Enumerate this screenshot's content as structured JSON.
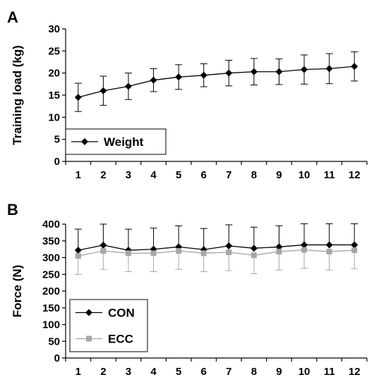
{
  "chart_data": [
    {
      "panel": "A",
      "type": "line",
      "xlabel": "",
      "ylabel": "Training load (kg)",
      "categories": [
        1,
        2,
        3,
        4,
        5,
        6,
        7,
        8,
        9,
        10,
        11,
        12
      ],
      "ylim": [
        0,
        30
      ],
      "yticks": [
        0,
        5,
        10,
        15,
        20,
        25,
        30
      ],
      "legend_position": "bottom-left",
      "series": [
        {
          "name": "Weight",
          "marker": "diamond",
          "color": "#000000",
          "values": [
            14.5,
            16.0,
            17.0,
            18.4,
            19.1,
            19.5,
            20.0,
            20.3,
            20.3,
            20.8,
            21.0,
            21.5
          ],
          "error": [
            3.2,
            3.3,
            3.0,
            2.6,
            2.8,
            2.6,
            2.9,
            3.0,
            2.9,
            3.3,
            3.4,
            3.3
          ]
        }
      ]
    },
    {
      "panel": "B",
      "type": "line",
      "xlabel": "",
      "ylabel": "Force (N)",
      "categories": [
        1,
        2,
        3,
        4,
        5,
        6,
        7,
        8,
        9,
        10,
        11,
        12
      ],
      "ylim": [
        0,
        400
      ],
      "yticks": [
        0,
        50,
        100,
        150,
        200,
        250,
        300,
        350,
        400
      ],
      "legend_position": "bottom-left",
      "series": [
        {
          "name": "CON",
          "marker": "diamond",
          "color": "#000000",
          "values": [
            322,
            337,
            322,
            325,
            332,
            324,
            335,
            328,
            332,
            338,
            338,
            338
          ],
          "error_up": 63,
          "error_down": 0
        },
        {
          "name": "ECC",
          "marker": "square",
          "color": "#a6a6a6",
          "values": [
            305,
            320,
            313,
            313,
            320,
            313,
            316,
            307,
            318,
            323,
            318,
            322
          ],
          "error_up": 0,
          "error_down": 55
        }
      ]
    }
  ]
}
